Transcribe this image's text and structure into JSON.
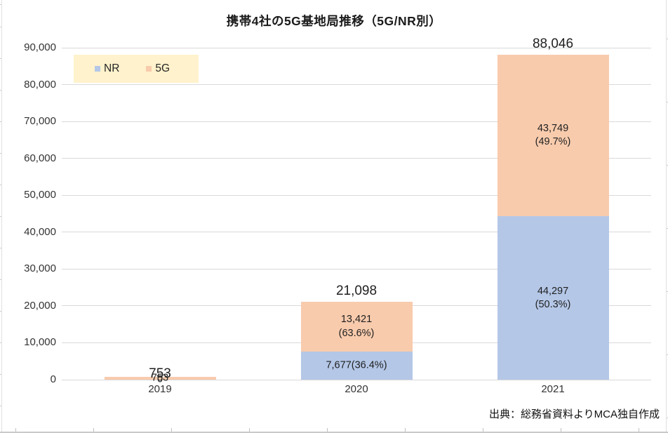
{
  "title": "携帯4社の5G基地局推移（5G/NR別）",
  "source_note": "出典：総務省資料よりMCA独自作成",
  "legend": {
    "background": "#FFF2CC",
    "items": [
      {
        "label": "NR",
        "color": "#B4C7E7"
      },
      {
        "label": "5G",
        "color": "#F8CBAD"
      }
    ]
  },
  "chart_data": {
    "type": "bar",
    "stacked": true,
    "title": "携帯4社の5G基地局推移（5G/NR別）",
    "categories": [
      "2019",
      "2020",
      "2021"
    ],
    "series": [
      {
        "name": "NR",
        "color": "#B4C7E7",
        "values": [
          0,
          7677,
          44297
        ],
        "data_labels": [
          "0",
          "7,677(36.4%)",
          "44,297\n(50.3%)"
        ]
      },
      {
        "name": "5G",
        "color": "#F8CBAD",
        "values": [
          753,
          13421,
          43749
        ],
        "data_labels": [
          "753",
          "13,421\n(63.6%)",
          "43,749\n(49.7%)"
        ]
      }
    ],
    "totals": [
      753,
      21098,
      88046
    ],
    "total_labels": [
      "753",
      "21,098",
      "88,046"
    ],
    "ylim": [
      0,
      90000
    ],
    "ytick_interval": 10000,
    "ytick_labels": [
      "0",
      "10,000",
      "20,000",
      "30,000",
      "40,000",
      "50,000",
      "60,000",
      "70,000",
      "80,000",
      "90,000"
    ],
    "grid": true,
    "legend_position": "top-left"
  },
  "colors": {
    "nr_fill": "#B4C7E7",
    "fiveg_fill": "#F8CBAD",
    "legend_background": "#FFF2CC",
    "gridline": "#D9D9D9",
    "label_text": "#1F1F1F",
    "background": "#FFFFFF"
  }
}
